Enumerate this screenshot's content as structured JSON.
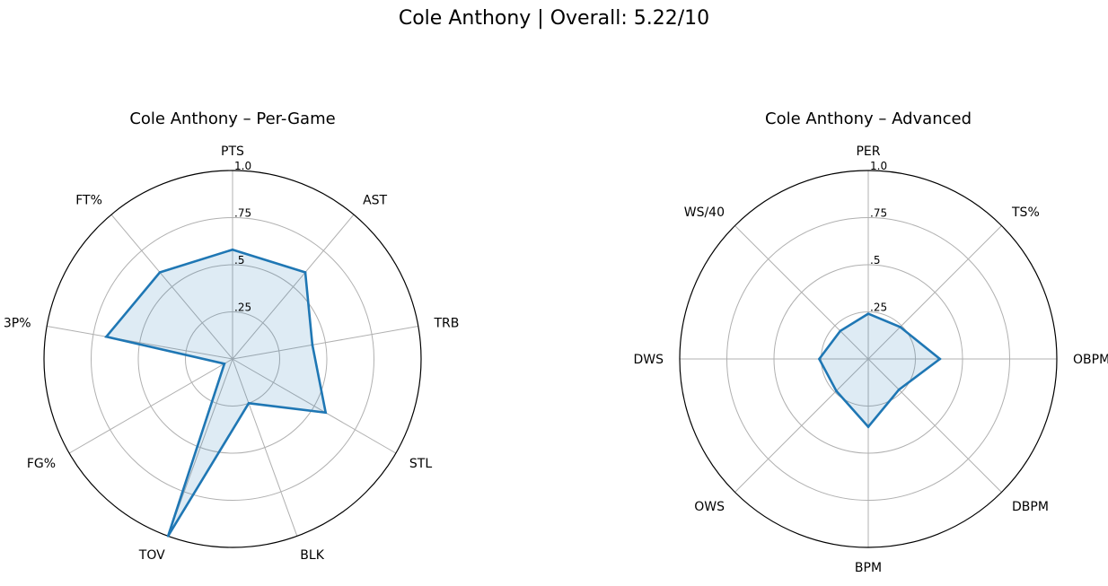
{
  "suptitle": "Cole Anthony | Overall: 5.22/10",
  "chart_data": [
    {
      "type": "radar",
      "title": "Cole Anthony – Per-Game",
      "categories": [
        "PTS",
        "AST",
        "TRB",
        "STL",
        "BLK",
        "TOV",
        "FG%",
        "3P%",
        "FT%"
      ],
      "values": [
        0.58,
        0.6,
        0.43,
        0.57,
        0.25,
        1.0,
        0.05,
        0.68,
        0.6
      ],
      "rlim": [
        0,
        1.0
      ],
      "rticks": [
        0.25,
        0.5,
        0.75,
        1.0
      ],
      "rtick_labels": [
        ".25",
        ".5",
        ".75",
        "1.0"
      ],
      "grid": true,
      "color": "#1f77b4"
    },
    {
      "type": "radar",
      "title": "Cole Anthony – Advanced",
      "categories": [
        "PER",
        "TS%",
        "OBPM",
        "DBPM",
        "BPM",
        "OWS",
        "DWS",
        "WS/40"
      ],
      "values": [
        0.24,
        0.24,
        0.38,
        0.23,
        0.36,
        0.24,
        0.26,
        0.21
      ],
      "rlim": [
        0,
        1.0
      ],
      "rticks": [
        0.25,
        0.5,
        0.75,
        1.0
      ],
      "rtick_labels": [
        ".25",
        ".5",
        ".75",
        "1.0"
      ],
      "grid": true,
      "color": "#1f77b4"
    }
  ]
}
